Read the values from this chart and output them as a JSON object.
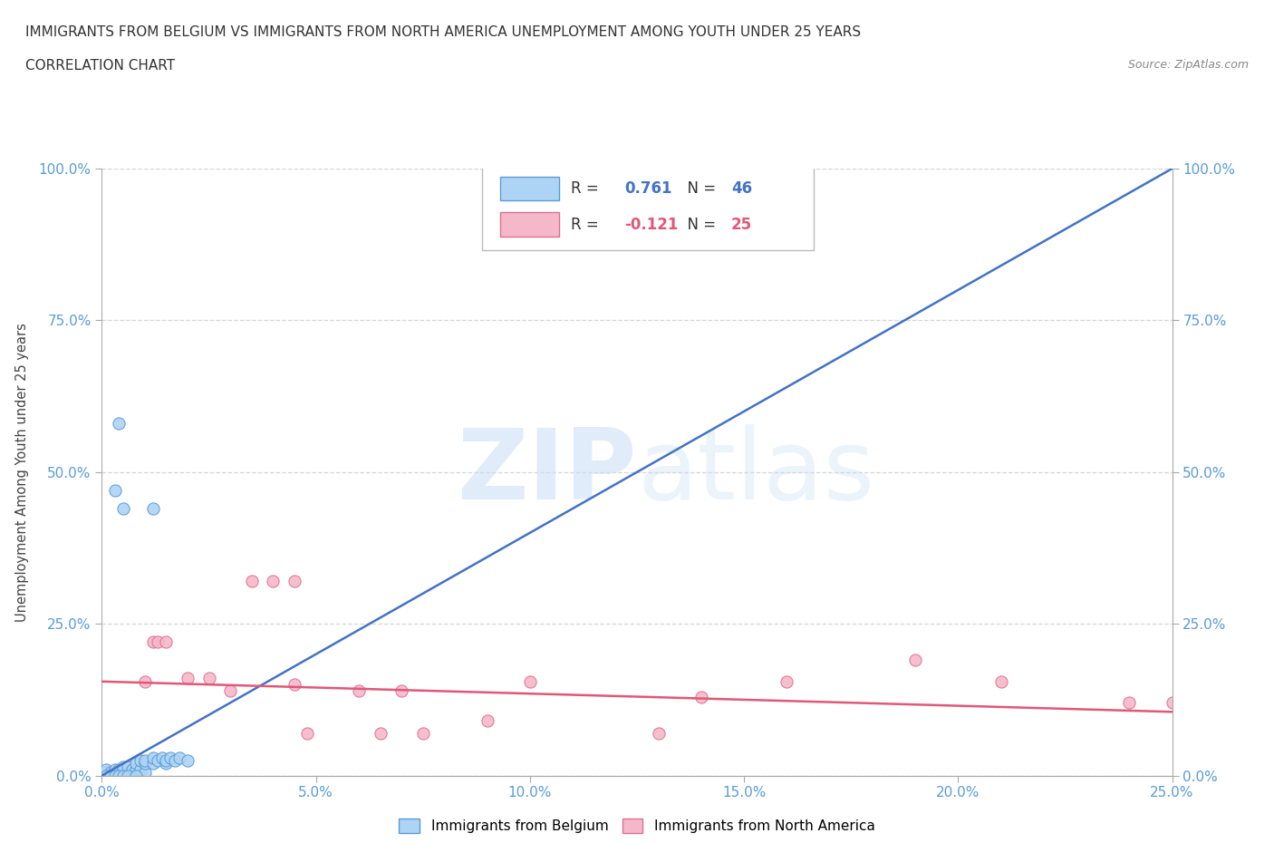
{
  "title_line1": "IMMIGRANTS FROM BELGIUM VS IMMIGRANTS FROM NORTH AMERICA UNEMPLOYMENT AMONG YOUTH UNDER 25 YEARS",
  "title_line2": "CORRELATION CHART",
  "source": "Source: ZipAtlas.com",
  "ylabel_label": "Unemployment Among Youth under 25 years",
  "xlim": [
    0.0,
    0.25
  ],
  "ylim": [
    0.0,
    1.0
  ],
  "watermark_zip": "ZIP",
  "watermark_atlas": "atlas",
  "belgium_R": 0.761,
  "belgium_N": 46,
  "northamerica_R": -0.121,
  "northamerica_N": 25,
  "belgium_color": "#aed4f5",
  "belgium_edge_color": "#5b9bd5",
  "belgium_line_color": "#4472c4",
  "northamerica_color": "#f5b8cb",
  "northamerica_edge_color": "#e07090",
  "northamerica_line_color": "#e05878",
  "belgium_line_x0": 0.0,
  "belgium_line_y0": 0.0,
  "belgium_line_x1": 0.25,
  "belgium_line_y1": 1.0,
  "northamerica_line_x0": 0.0,
  "northamerica_line_y0": 0.155,
  "northamerica_line_x1": 0.25,
  "northamerica_line_y1": 0.105,
  "belgium_scatter": [
    [
      0.001,
      0.005
    ],
    [
      0.001,
      0.01
    ],
    [
      0.002,
      0.002
    ],
    [
      0.002,
      0.005
    ],
    [
      0.003,
      0.002
    ],
    [
      0.003,
      0.005
    ],
    [
      0.003,
      0.01
    ],
    [
      0.004,
      0.002
    ],
    [
      0.004,
      0.005
    ],
    [
      0.004,
      0.01
    ],
    [
      0.005,
      0.002
    ],
    [
      0.005,
      0.005
    ],
    [
      0.005,
      0.01
    ],
    [
      0.005,
      0.015
    ],
    [
      0.006,
      0.005
    ],
    [
      0.006,
      0.015
    ],
    [
      0.007,
      0.005
    ],
    [
      0.007,
      0.01
    ],
    [
      0.008,
      0.01
    ],
    [
      0.008,
      0.02
    ],
    [
      0.009,
      0.01
    ],
    [
      0.009,
      0.025
    ],
    [
      0.01,
      0.005
    ],
    [
      0.01,
      0.02
    ],
    [
      0.01,
      0.025
    ],
    [
      0.012,
      0.02
    ],
    [
      0.012,
      0.03
    ],
    [
      0.013,
      0.025
    ],
    [
      0.014,
      0.03
    ],
    [
      0.015,
      0.02
    ],
    [
      0.015,
      0.025
    ],
    [
      0.016,
      0.03
    ],
    [
      0.017,
      0.025
    ],
    [
      0.018,
      0.03
    ],
    [
      0.02,
      0.025
    ],
    [
      0.001,
      0.0
    ],
    [
      0.002,
      0.0
    ],
    [
      0.003,
      0.0
    ],
    [
      0.004,
      0.0
    ],
    [
      0.005,
      0.0
    ],
    [
      0.006,
      0.0
    ],
    [
      0.008,
      0.0
    ],
    [
      0.003,
      0.47
    ],
    [
      0.004,
      0.58
    ],
    [
      0.005,
      0.44
    ],
    [
      0.012,
      0.44
    ]
  ],
  "northamerica_scatter": [
    [
      0.01,
      0.155
    ],
    [
      0.012,
      0.22
    ],
    [
      0.013,
      0.22
    ],
    [
      0.015,
      0.22
    ],
    [
      0.02,
      0.16
    ],
    [
      0.025,
      0.16
    ],
    [
      0.03,
      0.14
    ],
    [
      0.035,
      0.32
    ],
    [
      0.04,
      0.32
    ],
    [
      0.045,
      0.32
    ],
    [
      0.045,
      0.15
    ],
    [
      0.048,
      0.07
    ],
    [
      0.06,
      0.14
    ],
    [
      0.065,
      0.07
    ],
    [
      0.07,
      0.14
    ],
    [
      0.075,
      0.07
    ],
    [
      0.09,
      0.09
    ],
    [
      0.1,
      0.155
    ],
    [
      0.13,
      0.07
    ],
    [
      0.14,
      0.13
    ],
    [
      0.16,
      0.155
    ],
    [
      0.19,
      0.19
    ],
    [
      0.21,
      0.155
    ],
    [
      0.24,
      0.12
    ],
    [
      0.25,
      0.12
    ]
  ]
}
